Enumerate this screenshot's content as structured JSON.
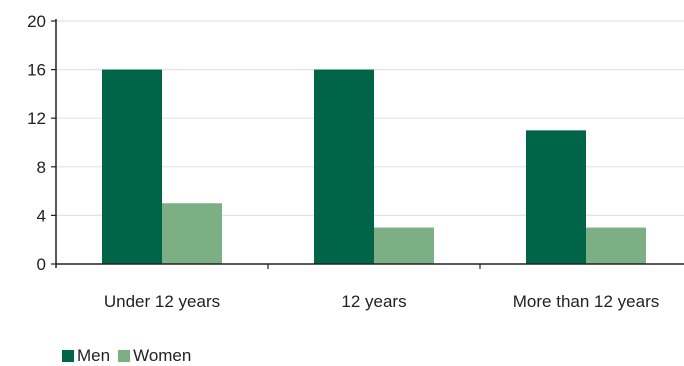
{
  "chart_data": {
    "type": "bar",
    "categories": [
      "Under 12 years",
      "12 years",
      "More than 12 years"
    ],
    "series": [
      {
        "name": "Men",
        "values": [
          16,
          16,
          11
        ],
        "color": "#006548"
      },
      {
        "name": "Women",
        "values": [
          5,
          3,
          3
        ],
        "color": "#7daf85"
      }
    ],
    "ylim": [
      0,
      20
    ],
    "yticks": [
      "0",
      "4",
      "8",
      "12",
      "16",
      "20"
    ],
    "title": "",
    "xlabel": "",
    "ylabel": "",
    "grid": "horizontal",
    "legend_position": "bottom-left"
  }
}
